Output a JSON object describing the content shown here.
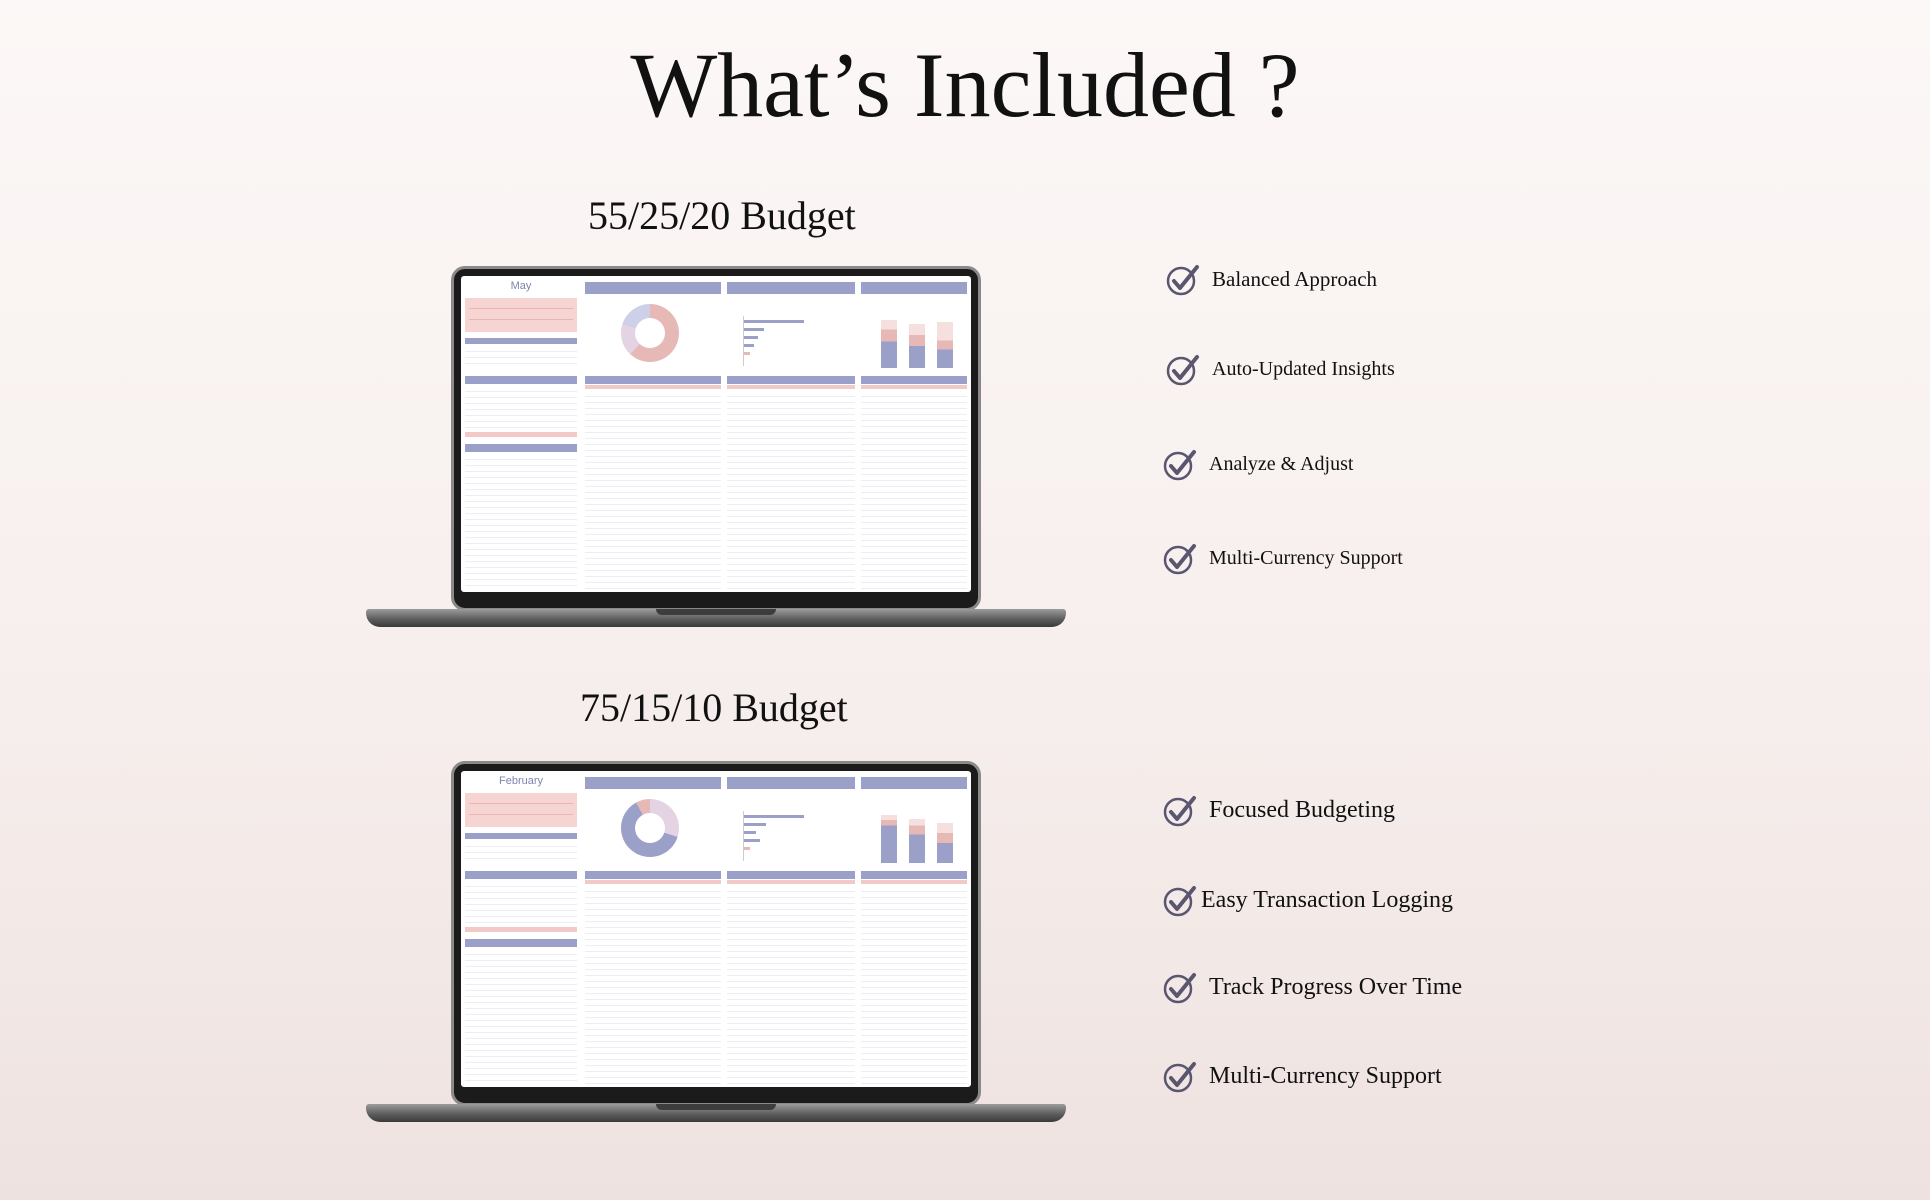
{
  "page": {
    "title": "What’s Included ?"
  },
  "sections": [
    {
      "heading": "55/25/20 Budget",
      "screen_month": "May",
      "features": [
        "Balanced Approach",
        "Auto-Updated Insights",
        "Analyze & Adjust",
        "Multi-Currency Support"
      ]
    },
    {
      "heading": "75/15/10 Budget",
      "screen_month": "February",
      "features": [
        "Focused Budgeting",
        "Easy Transaction Logging",
        "Track Progress Over Time",
        "Multi-Currency Support"
      ]
    }
  ],
  "icons": {
    "feature_icon": "checkmark-circle-icon"
  },
  "colors": {
    "header_blue": "#9aa0c8",
    "accent_pink": "#f2c9c6",
    "check_gray": "#5a5670"
  }
}
